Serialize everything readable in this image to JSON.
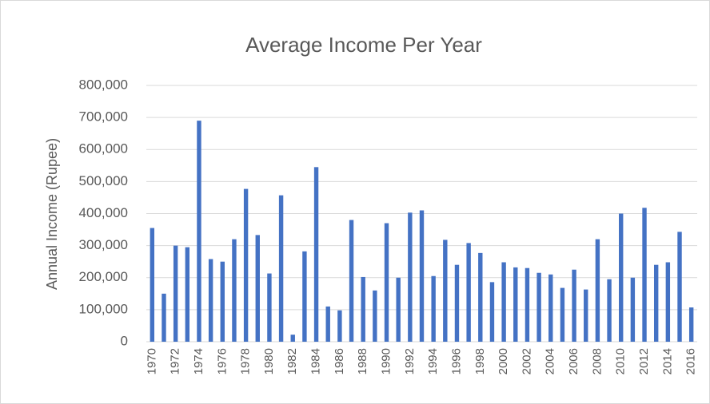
{
  "chart_data": {
    "type": "bar",
    "title": "Average Income Per Year",
    "y_label": "Annual Income (Rupee)",
    "categories": [
      "1970",
      null,
      "1972",
      null,
      "1974",
      null,
      "1976",
      null,
      "1978",
      null,
      "1980",
      null,
      "1982",
      null,
      "1984",
      null,
      "1986",
      null,
      "1988",
      null,
      "1990",
      null,
      "1992",
      null,
      "1994",
      null,
      "1996",
      null,
      "1998",
      null,
      "2000",
      null,
      "2002",
      null,
      "2004",
      null,
      "2006",
      null,
      "2008",
      null,
      "2010",
      null,
      "2012",
      null,
      "2014",
      null,
      "2016"
    ],
    "values": [
      355000,
      150000,
      300000,
      295000,
      690000,
      258000,
      250000,
      320000,
      477000,
      333000,
      213000,
      457000,
      22000,
      282000,
      545000,
      110000,
      98000,
      380000,
      202000,
      160000,
      370000,
      200000,
      403000,
      410000,
      205000,
      318000,
      240000,
      308000,
      277000,
      186000,
      248000,
      232000,
      230000,
      215000,
      210000,
      168000,
      225000,
      163000,
      320000,
      195000,
      400000,
      200000,
      418000,
      240000,
      248000,
      343000,
      107000
    ],
    "color": "#4472c4",
    "ylim": [
      0,
      800000
    ],
    "yticks": [
      0,
      {
        "value": 100000,
        "label": "100,000"
      },
      {
        "value": 200000,
        "label": "200,000"
      },
      {
        "value": 300000,
        "label": "300,000"
      },
      {
        "value": 400000,
        "label": "400,000"
      },
      {
        "value": 500000,
        "label": "500,000"
      },
      {
        "value": 600000,
        "label": "600,000"
      },
      {
        "value": 700000,
        "label": "700,000"
      },
      {
        "value": 800000,
        "label": "800,000"
      }
    ],
    "grid": true
  }
}
